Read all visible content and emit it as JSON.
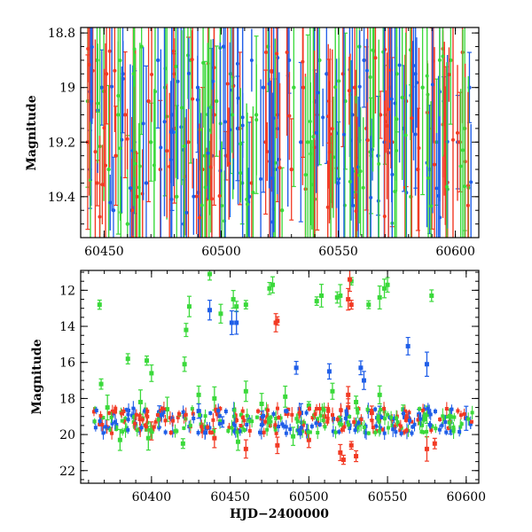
{
  "chart_data": [
    {
      "type": "scatter",
      "panel": "top",
      "title": "",
      "xlabel": "",
      "ylabel": "Magnitude",
      "xlim": [
        60440,
        60610
      ],
      "ylim": [
        19.55,
        18.78
      ],
      "y_inverted": true,
      "x_ticks": [
        60450,
        60500,
        60550,
        60600
      ],
      "x_tick_labels": [
        "60450",
        "60500",
        "60550",
        "60600"
      ],
      "y_ticks": [
        18.8,
        19.0,
        19.2,
        19.4
      ],
      "y_tick_labels": [
        "18.8",
        "19",
        "19.2",
        "19.4"
      ],
      "grid": false,
      "series": [
        {
          "color": "#3bd93b",
          "marker": "circle-with-errorbar",
          "description_values": [
            [
              60443,
              19.05
            ],
            [
              60447,
              18.9
            ],
            [
              60452,
              19.3
            ],
            [
              60456,
              19.1
            ],
            [
              60460,
              19.5
            ],
            [
              60466,
              18.85
            ],
            [
              60470,
              19.2
            ],
            [
              60476,
              19.0
            ],
            [
              60481,
              19.4
            ],
            [
              60487,
              18.9
            ],
            [
              60493,
              19.25
            ],
            [
              60498,
              19.05
            ],
            [
              60504,
              18.95
            ],
            [
              60509,
              19.35
            ],
            [
              60515,
              19.1
            ],
            [
              60520,
              18.85
            ],
            [
              60526,
              19.45
            ],
            [
              60531,
              19.0
            ],
            [
              60537,
              19.2
            ],
            [
              60542,
              18.9
            ],
            [
              60547,
              19.3
            ],
            [
              60553,
              19.05
            ],
            [
              60559,
              18.85
            ],
            [
              60564,
              19.25
            ],
            [
              60570,
              19.1
            ],
            [
              60575,
              18.95
            ],
            [
              60581,
              19.4
            ],
            [
              60586,
              19.0
            ],
            [
              60592,
              19.2
            ],
            [
              60598,
              18.9
            ],
            [
              60604,
              19.15
            ]
          ]
        },
        {
          "color": "#1f5ee8",
          "marker": "circle-with-errorbar",
          "description_values": [
            [
              60444,
              19.3
            ],
            [
              60449,
              19.0
            ],
            [
              60454,
              19.45
            ],
            [
              60458,
              18.95
            ],
            [
              60463,
              19.2
            ],
            [
              60468,
              19.35
            ],
            [
              60473,
              18.9
            ],
            [
              60479,
              19.1
            ],
            [
              60484,
              19.5
            ],
            [
              60490,
              19.0
            ],
            [
              60496,
              19.25
            ],
            [
              60501,
              18.85
            ],
            [
              60507,
              19.15
            ],
            [
              60512,
              19.4
            ],
            [
              60518,
              19.0
            ],
            [
              60523,
              19.3
            ],
            [
              60529,
              18.9
            ],
            [
              60534,
              19.2
            ],
            [
              60540,
              19.05
            ],
            [
              60545,
              18.95
            ],
            [
              60550,
              19.35
            ],
            [
              60556,
              19.1
            ],
            [
              60561,
              18.9
            ],
            [
              60567,
              19.25
            ],
            [
              60572,
              19.0
            ],
            [
              60578,
              19.15
            ],
            [
              60583,
              18.95
            ],
            [
              60589,
              19.3
            ],
            [
              60595,
              19.05
            ],
            [
              60601,
              19.2
            ],
            [
              60606,
              19.0
            ]
          ]
        },
        {
          "color": "#f23a24",
          "marker": "circle-with-errorbar",
          "description_values": [
            [
              60443,
              19.2
            ],
            [
              60447,
              19.35
            ],
            [
              60451,
              18.95
            ],
            [
              60455,
              19.25
            ],
            [
              60459,
              19.1
            ],
            [
              60464,
              19.4
            ],
            [
              60469,
              19.05
            ],
            [
              60474,
              19.3
            ],
            [
              60480,
              19.15
            ],
            [
              60486,
              19.2
            ],
            [
              60492,
              19.3
            ],
            [
              60497,
              19.1
            ],
            [
              60502,
              19.25
            ],
            [
              60508,
              19.15
            ],
            [
              60513,
              19.35
            ],
            [
              60519,
              19.2
            ],
            [
              60524,
              19.1
            ],
            [
              60530,
              19.3
            ],
            [
              60535,
              19.0
            ],
            [
              60541,
              19.1
            ],
            [
              60546,
              19.05
            ],
            [
              60552,
              18.95
            ],
            [
              60557,
              19.0
            ],
            [
              60562,
              19.15
            ],
            [
              60568,
              19.1
            ],
            [
              60573,
              19.2
            ],
            [
              60579,
              19.05
            ],
            [
              60584,
              19.3
            ],
            [
              60590,
              19.15
            ],
            [
              60596,
              19.25
            ],
            [
              60602,
              19.2
            ]
          ]
        }
      ]
    },
    {
      "type": "scatter",
      "panel": "bottom",
      "title": "",
      "xlabel": "HJD−2400000",
      "ylabel": "Magnitude",
      "xlim": [
        60355,
        60608
      ],
      "ylim": [
        22.7,
        10.9
      ],
      "y_inverted": true,
      "x_ticks": [
        60400,
        60450,
        60500,
        60550,
        60600
      ],
      "x_tick_labels": [
        "60400",
        "60450",
        "60500",
        "60550",
        "60600"
      ],
      "y_ticks": [
        12,
        14,
        16,
        18,
        20,
        22
      ],
      "y_tick_labels": [
        "12",
        "14",
        "16",
        "18",
        "20",
        "22"
      ],
      "grid": false,
      "series": [
        {
          "color": "#3bd93b",
          "marker": "square-with-errorbar",
          "description_values": [
            [
              60367,
              12.8
            ],
            [
              60368,
              17.2
            ],
            [
              60385,
              15.8
            ],
            [
              60397,
              15.9
            ],
            [
              60400,
              16.6
            ],
            [
              60421,
              16.1
            ],
            [
              60422,
              14.2
            ],
            [
              60424,
              12.9
            ],
            [
              60437,
              11.1
            ],
            [
              60444,
              13.3
            ],
            [
              60452,
              12.5
            ],
            [
              60454,
              12.9
            ],
            [
              60460,
              12.8
            ],
            [
              60475,
              11.9
            ],
            [
              60477,
              11.7
            ],
            [
              60505,
              12.6
            ],
            [
              60508,
              12.3
            ],
            [
              60518,
              12.4
            ],
            [
              60520,
              12.3
            ],
            [
              60527,
              11.5
            ],
            [
              60538,
              12.8
            ],
            [
              60545,
              12.4
            ],
            [
              60548,
              11.9
            ],
            [
              60550,
              11.7
            ],
            [
              60578,
              12.3
            ],
            [
              60372,
              18.5
            ],
            [
              60380,
              20.3
            ],
            [
              60393,
              18.2
            ],
            [
              60410,
              18.6
            ],
            [
              60430,
              17.8
            ],
            [
              60440,
              18.0
            ],
            [
              60460,
              17.6
            ],
            [
              60470,
              18.3
            ],
            [
              60485,
              17.9
            ],
            [
              60500,
              18.4
            ],
            [
              60515,
              17.6
            ],
            [
              60530,
              18.2
            ],
            [
              60545,
              17.8
            ],
            [
              60560,
              18.6
            ],
            [
              60575,
              18.9
            ],
            [
              60590,
              19.0
            ],
            [
              60398,
              20.2
            ],
            [
              60420,
              20.5
            ],
            [
              60455,
              20.4
            ],
            [
              60490,
              20.1
            ]
          ]
        },
        {
          "color": "#1f5ee8",
          "marker": "square-with-errorbar",
          "description_values": [
            [
              60437,
              13.1
            ],
            [
              60451,
              13.8
            ],
            [
              60454,
              13.8
            ],
            [
              60492,
              16.3
            ],
            [
              60513,
              16.5
            ],
            [
              60533,
              16.3
            ],
            [
              60535,
              17.0
            ],
            [
              60563,
              15.1
            ],
            [
              60575,
              16.1
            ],
            [
              60405,
              19.0
            ],
            [
              60430,
              18.7
            ],
            [
              60445,
              19.3
            ],
            [
              60470,
              19.1
            ],
            [
              60495,
              18.8
            ],
            [
              60520,
              19.2
            ],
            [
              60545,
              19.0
            ],
            [
              60570,
              18.9
            ],
            [
              60590,
              19.3
            ],
            [
              60600,
              19.1
            ]
          ]
        },
        {
          "color": "#f23a24",
          "marker": "square-with-errorbar",
          "description_values": [
            [
              60479,
              13.8
            ],
            [
              60480,
              13.7
            ],
            [
              60525,
              12.5
            ],
            [
              60526,
              11.4
            ],
            [
              60527,
              12.8
            ],
            [
              60525,
              17.8
            ],
            [
              60510,
              19.0
            ],
            [
              60525,
              18.5
            ],
            [
              60540,
              18.8
            ],
            [
              60500,
              20.3
            ],
            [
              60520,
              21.0
            ],
            [
              60522,
              21.4
            ],
            [
              60527,
              20.6
            ],
            [
              60530,
              21.2
            ],
            [
              60575,
              20.8
            ],
            [
              60580,
              20.5
            ],
            [
              60460,
              20.8
            ],
            [
              60480,
              20.6
            ],
            [
              60440,
              20.2
            ],
            [
              60400,
              19.8
            ]
          ]
        }
      ]
    }
  ]
}
